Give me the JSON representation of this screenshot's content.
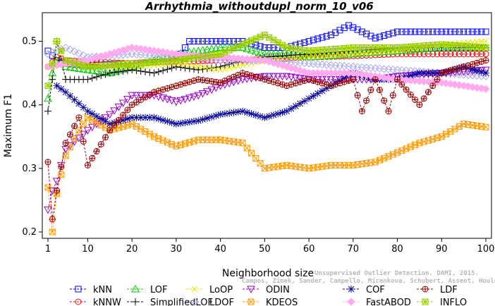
{
  "chart_data": {
    "type": "line",
    "title": "Arrhythmia_withoutdupl_norm_10_v06",
    "xlabel": "Neighborhood size",
    "ylabel": "Maximum F1",
    "xlim": [
      1,
      100
    ],
    "ylim": [
      0.19,
      0.545
    ],
    "xticks": [
      1,
      10,
      20,
      30,
      40,
      50,
      60,
      70,
      80,
      90,
      100
    ],
    "yticks": [
      0.2,
      0.3,
      0.4,
      0.5
    ],
    "grid": false,
    "legend_position": "bottom",
    "series": [
      {
        "name": "kNN",
        "color": "#0000ff",
        "marker": "square",
        "line": "dashed",
        "points": [
          [
            1,
            0.485
          ],
          [
            3,
            0.47
          ],
          [
            5,
            0.465
          ],
          [
            10,
            0.462
          ],
          [
            20,
            0.465
          ],
          [
            30,
            0.47
          ],
          [
            33,
            0.5
          ],
          [
            40,
            0.5
          ],
          [
            45,
            0.5
          ],
          [
            50,
            0.49
          ],
          [
            55,
            0.49
          ],
          [
            60,
            0.5
          ],
          [
            65,
            0.51
          ],
          [
            69,
            0.525
          ],
          [
            72,
            0.515
          ],
          [
            75,
            0.505
          ],
          [
            80,
            0.515
          ],
          [
            90,
            0.515
          ],
          [
            100,
            0.515
          ]
        ]
      },
      {
        "name": "kNNW",
        "color": "#ff0000",
        "marker": "circle",
        "line": "dashed",
        "points": [
          [
            1,
            0.46
          ],
          [
            3,
            0.475
          ],
          [
            5,
            0.47
          ],
          [
            10,
            0.468
          ],
          [
            20,
            0.465
          ],
          [
            30,
            0.468
          ],
          [
            40,
            0.47
          ],
          [
            50,
            0.472
          ],
          [
            60,
            0.475
          ],
          [
            70,
            0.477
          ],
          [
            80,
            0.48
          ],
          [
            90,
            0.48
          ],
          [
            100,
            0.48
          ]
        ]
      },
      {
        "name": "LOF",
        "color": "#00cc00",
        "marker": "triangle-up",
        "line": "dashed",
        "points": [
          [
            1,
            0.41
          ],
          [
            2,
            0.45
          ],
          [
            3,
            0.47
          ],
          [
            5,
            0.46
          ],
          [
            10,
            0.455
          ],
          [
            15,
            0.45
          ],
          [
            20,
            0.46
          ],
          [
            25,
            0.47
          ],
          [
            30,
            0.48
          ],
          [
            35,
            0.485
          ],
          [
            40,
            0.49
          ],
          [
            45,
            0.49
          ],
          [
            50,
            0.48
          ],
          [
            55,
            0.48
          ],
          [
            60,
            0.475
          ],
          [
            70,
            0.48
          ],
          [
            80,
            0.485
          ],
          [
            90,
            0.49
          ],
          [
            100,
            0.49
          ]
        ]
      },
      {
        "name": "SimplifiedLOF",
        "color": "#000000",
        "marker": "plus",
        "line": "dashed",
        "points": [
          [
            1,
            0.39
          ],
          [
            2,
            0.44
          ],
          [
            3,
            0.5
          ],
          [
            5,
            0.44
          ],
          [
            10,
            0.44
          ],
          [
            15,
            0.45
          ],
          [
            20,
            0.455
          ],
          [
            25,
            0.45
          ],
          [
            30,
            0.46
          ],
          [
            35,
            0.455
          ],
          [
            40,
            0.46
          ],
          [
            45,
            0.47
          ],
          [
            50,
            0.475
          ],
          [
            60,
            0.48
          ],
          [
            70,
            0.485
          ],
          [
            80,
            0.49
          ],
          [
            90,
            0.49
          ],
          [
            100,
            0.49
          ]
        ]
      },
      {
        "name": "LoOP",
        "color": "#e6e600",
        "marker": "x",
        "line": "dashed",
        "points": [
          [
            1,
            0.46
          ],
          [
            5,
            0.465
          ],
          [
            10,
            0.46
          ],
          [
            20,
            0.46
          ],
          [
            30,
            0.465
          ],
          [
            40,
            0.455
          ],
          [
            50,
            0.47
          ],
          [
            60,
            0.475
          ],
          [
            70,
            0.48
          ],
          [
            80,
            0.485
          ],
          [
            90,
            0.495
          ],
          [
            100,
            0.5
          ]
        ]
      },
      {
        "name": "LDOF",
        "color": "#aaaaee",
        "marker": "diamond",
        "line": "dashed",
        "points": [
          [
            1,
            0.48
          ],
          [
            5,
            0.49
          ],
          [
            10,
            0.475
          ],
          [
            20,
            0.48
          ],
          [
            30,
            0.475
          ],
          [
            40,
            0.47
          ],
          [
            50,
            0.47
          ],
          [
            60,
            0.465
          ],
          [
            70,
            0.46
          ],
          [
            80,
            0.455
          ],
          [
            90,
            0.45
          ],
          [
            100,
            0.445
          ]
        ]
      },
      {
        "name": "ODIN",
        "color": "#9900cc",
        "marker": "triangle-down",
        "line": "dashed",
        "points": [
          [
            1,
            0.235
          ],
          [
            2,
            0.265
          ],
          [
            3,
            0.28
          ],
          [
            5,
            0.33
          ],
          [
            10,
            0.36
          ],
          [
            15,
            0.385
          ],
          [
            20,
            0.415
          ],
          [
            25,
            0.415
          ],
          [
            30,
            0.405
          ],
          [
            35,
            0.415
          ],
          [
            40,
            0.43
          ],
          [
            45,
            0.44
          ],
          [
            50,
            0.445
          ],
          [
            55,
            0.445
          ],
          [
            60,
            0.44
          ],
          [
            65,
            0.44
          ],
          [
            70,
            0.44
          ],
          [
            75,
            0.44
          ],
          [
            80,
            0.445
          ],
          [
            90,
            0.45
          ],
          [
            100,
            0.455
          ]
        ]
      },
      {
        "name": "KDEOS",
        "color": "#ff9900",
        "marker": "square-x",
        "line": "dashed",
        "points": [
          [
            1,
            0.27
          ],
          [
            2,
            0.2
          ],
          [
            3,
            0.26
          ],
          [
            5,
            0.32
          ],
          [
            8,
            0.36
          ],
          [
            10,
            0.38
          ],
          [
            15,
            0.36
          ],
          [
            20,
            0.37
          ],
          [
            25,
            0.35
          ],
          [
            30,
            0.335
          ],
          [
            35,
            0.345
          ],
          [
            40,
            0.345
          ],
          [
            45,
            0.34
          ],
          [
            50,
            0.3
          ],
          [
            55,
            0.305
          ],
          [
            60,
            0.3
          ],
          [
            65,
            0.305
          ],
          [
            70,
            0.305
          ],
          [
            75,
            0.31
          ],
          [
            80,
            0.325
          ],
          [
            85,
            0.34
          ],
          [
            90,
            0.35
          ],
          [
            95,
            0.37
          ],
          [
            100,
            0.365
          ]
        ]
      },
      {
        "name": "COF",
        "color": "#000099",
        "marker": "asterisk",
        "line": "dashed",
        "points": [
          [
            3,
            0.43
          ],
          [
            5,
            0.42
          ],
          [
            10,
            0.39
          ],
          [
            15,
            0.37
          ],
          [
            20,
            0.38
          ],
          [
            25,
            0.38
          ],
          [
            30,
            0.37
          ],
          [
            35,
            0.375
          ],
          [
            40,
            0.385
          ],
          [
            45,
            0.39
          ],
          [
            50,
            0.38
          ],
          [
            55,
            0.39
          ],
          [
            60,
            0.41
          ],
          [
            65,
            0.43
          ],
          [
            70,
            0.45
          ],
          [
            75,
            0.44
          ],
          [
            80,
            0.44
          ],
          [
            85,
            0.45
          ],
          [
            90,
            0.45
          ],
          [
            95,
            0.46
          ],
          [
            100,
            0.45
          ]
        ]
      },
      {
        "name": "FastABOD",
        "color": "#ffaaee",
        "marker": "diamond-filled",
        "line": "dashed",
        "points": [
          [
            1,
            0.46
          ],
          [
            5,
            0.465
          ],
          [
            10,
            0.47
          ],
          [
            20,
            0.49
          ],
          [
            30,
            0.48
          ],
          [
            40,
            0.475
          ],
          [
            50,
            0.47
          ],
          [
            60,
            0.45
          ],
          [
            70,
            0.45
          ],
          [
            80,
            0.44
          ],
          [
            90,
            0.435
          ],
          [
            100,
            0.425
          ]
        ]
      },
      {
        "name": "LDF",
        "color": "#990000",
        "marker": "circle-plus",
        "line": "dashed",
        "points": [
          [
            1,
            0.31
          ],
          [
            2,
            0.22
          ],
          [
            3,
            0.265
          ],
          [
            5,
            0.34
          ],
          [
            8,
            0.38
          ],
          [
            10,
            0.305
          ],
          [
            15,
            0.36
          ],
          [
            20,
            0.4
          ],
          [
            25,
            0.42
          ],
          [
            30,
            0.43
          ],
          [
            35,
            0.44
          ],
          [
            40,
            0.435
          ],
          [
            45,
            0.45
          ],
          [
            50,
            0.44
          ],
          [
            55,
            0.43
          ],
          [
            60,
            0.44
          ],
          [
            65,
            0.43
          ],
          [
            70,
            0.44
          ],
          [
            72,
            0.39
          ],
          [
            75,
            0.44
          ],
          [
            78,
            0.39
          ],
          [
            80,
            0.44
          ],
          [
            85,
            0.4
          ],
          [
            90,
            0.45
          ],
          [
            95,
            0.46
          ],
          [
            100,
            0.47
          ]
        ]
      },
      {
        "name": "INFLO",
        "color": "#99cc00",
        "marker": "square-star",
        "line": "dashed",
        "points": [
          [
            1,
            0.43
          ],
          [
            3,
            0.5
          ],
          [
            5,
            0.47
          ],
          [
            10,
            0.46
          ],
          [
            20,
            0.465
          ],
          [
            30,
            0.47
          ],
          [
            40,
            0.48
          ],
          [
            50,
            0.51
          ],
          [
            55,
            0.49
          ],
          [
            60,
            0.485
          ],
          [
            70,
            0.49
          ],
          [
            80,
            0.49
          ],
          [
            90,
            0.495
          ],
          [
            100,
            0.49
          ]
        ]
      }
    ]
  },
  "watermark": {
    "line1": "Unsupervised Outlier Detection. DAMI, 2015.",
    "line2": "Campos, Zimek, Sander, Campello, Micenkova, Schubert, Assent, Houle"
  }
}
